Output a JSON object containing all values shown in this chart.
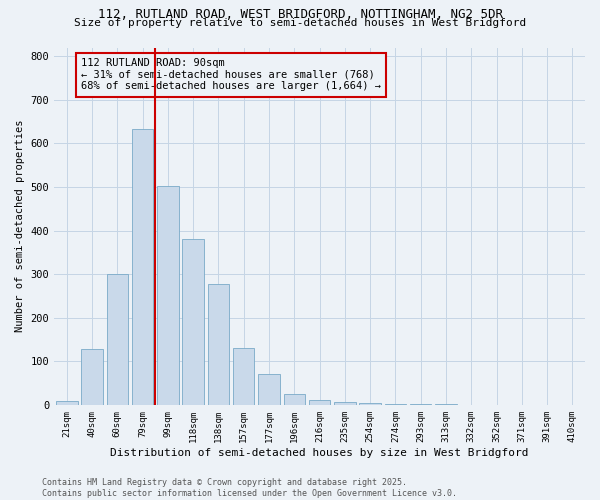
{
  "title1": "112, RUTLAND ROAD, WEST BRIDGFORD, NOTTINGHAM, NG2 5DR",
  "title2": "Size of property relative to semi-detached houses in West Bridgford",
  "xlabel": "Distribution of semi-detached houses by size in West Bridgford",
  "ylabel": "Number of semi-detached properties",
  "bar_labels": [
    "21sqm",
    "40sqm",
    "60sqm",
    "79sqm",
    "99sqm",
    "118sqm",
    "138sqm",
    "157sqm",
    "177sqm",
    "196sqm",
    "216sqm",
    "235sqm",
    "254sqm",
    "274sqm",
    "293sqm",
    "313sqm",
    "332sqm",
    "352sqm",
    "371sqm",
    "391sqm",
    "410sqm"
  ],
  "bar_values": [
    8,
    128,
    300,
    634,
    502,
    380,
    277,
    131,
    70,
    25,
    11,
    6,
    5,
    3,
    2,
    1,
    0,
    0,
    0,
    0,
    0
  ],
  "bar_color": "#c9d9ea",
  "bar_edge_color": "#7aaac8",
  "vline_color": "#cc0000",
  "annotation_title": "112 RUTLAND ROAD: 90sqm",
  "annotation_line1": "← 31% of semi-detached houses are smaller (768)",
  "annotation_line2": "68% of semi-detached houses are larger (1,664) →",
  "annotation_box_color": "#cc0000",
  "ylim": [
    0,
    820
  ],
  "yticks": [
    0,
    100,
    200,
    300,
    400,
    500,
    600,
    700,
    800
  ],
  "footer1": "Contains HM Land Registry data © Crown copyright and database right 2025.",
  "footer2": "Contains public sector information licensed under the Open Government Licence v3.0.",
  "bg_color": "#edf2f7",
  "grid_color": "#c5d5e5"
}
